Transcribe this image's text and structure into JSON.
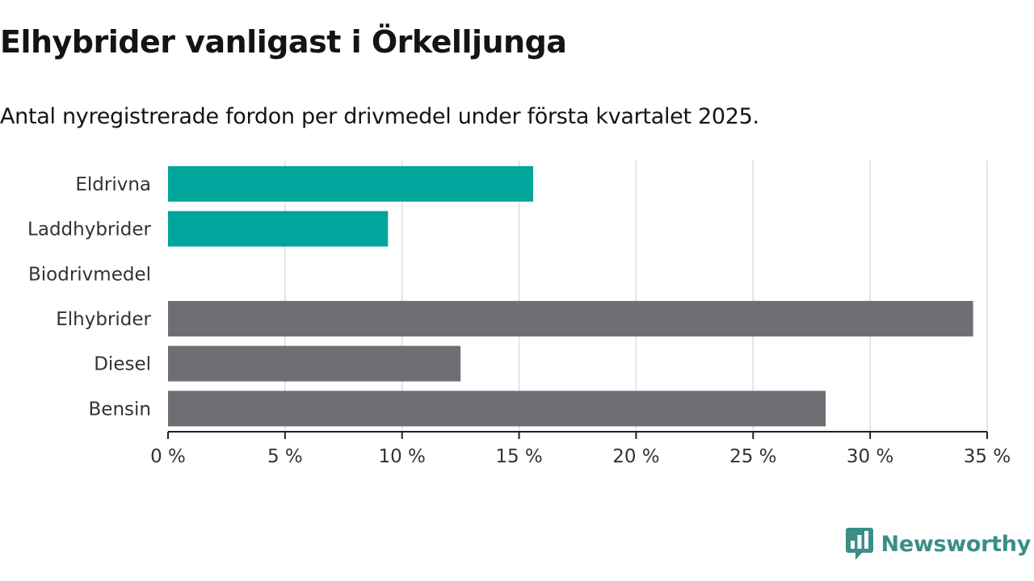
{
  "chart_data": {
    "type": "bar",
    "orientation": "horizontal",
    "title": "Elhybrider vanligast i Örkelljunga",
    "subtitle": "Antal nyregistrerade fordon per drivmedel under första kvartalet 2025.",
    "categories": [
      "Eldrivna",
      "Laddhybrider",
      "Biodrivmedel",
      "Elhybrider",
      "Diesel",
      "Bensin"
    ],
    "values": [
      15.6,
      9.4,
      0,
      34.4,
      12.5,
      28.1
    ],
    "bar_colors": [
      "#00a59b",
      "#00a59b",
      "#00a59b",
      "#6f6e74",
      "#6f6e74",
      "#6f6e74"
    ],
    "xlim": [
      0,
      35
    ],
    "xticks": [
      0,
      5,
      10,
      15,
      20,
      25,
      30,
      35
    ],
    "xtick_labels": [
      "0 %",
      "5 %",
      "10 %",
      "15 %",
      "20 %",
      "25 %",
      "30 %",
      "35 %"
    ],
    "grid": true,
    "legend": "none"
  },
  "brand": {
    "name": "Newsworthy",
    "icon": "newsworthy-logo-icon",
    "color": "#3a8f86"
  }
}
